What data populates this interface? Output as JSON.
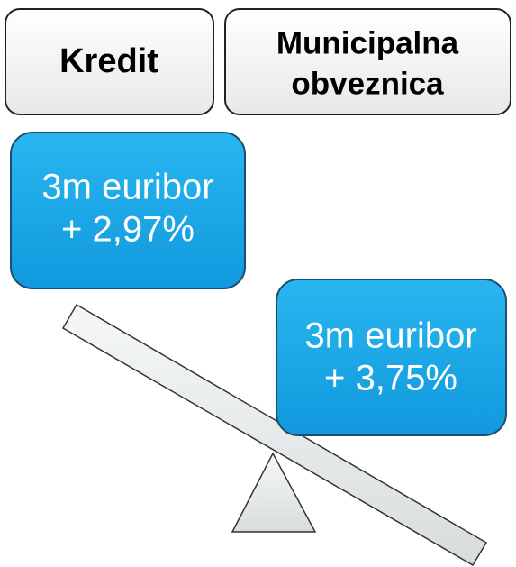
{
  "nodes": [
    {
      "lines": [
        "Kredit"
      ]
    },
    {
      "lines": [
        "Municipalna",
        "obveznica"
      ]
    },
    {
      "lines": [
        "3m euribor",
        "+ 2,97%"
      ]
    },
    {
      "lines": [
        "3m euribor",
        "+ 3,75%"
      ]
    }
  ]
}
